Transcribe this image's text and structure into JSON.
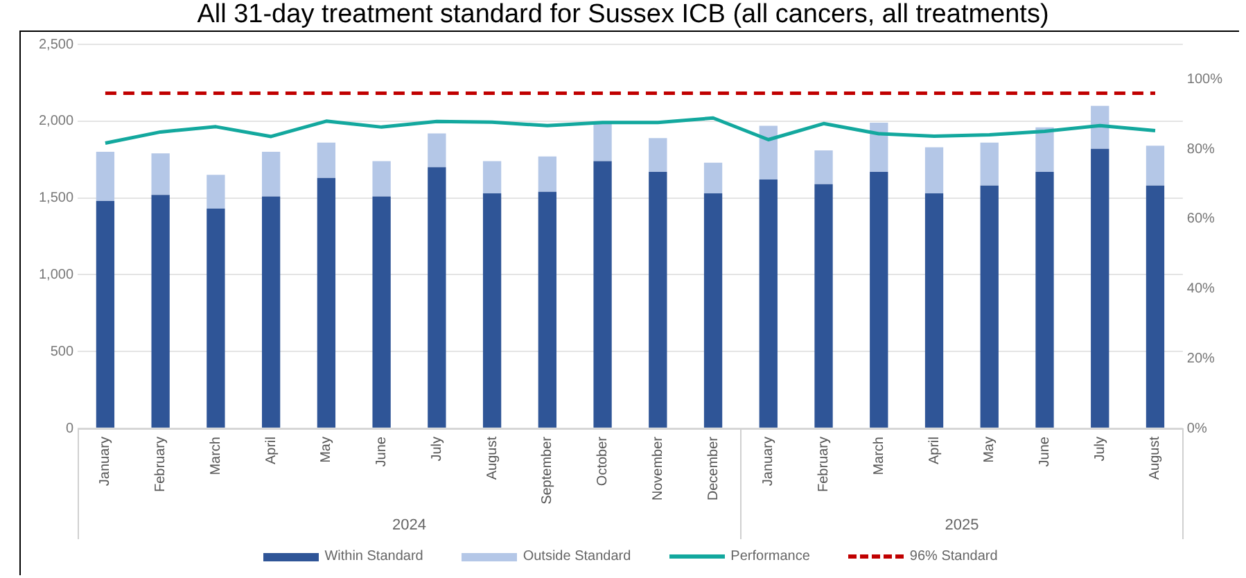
{
  "chart_data": {
    "type": "bar",
    "title": "All 31-day treatment standard for Sussex ICB (all cancers, all treatments)",
    "categories": [
      "January",
      "February",
      "March",
      "April",
      "May",
      "June",
      "July",
      "August",
      "September",
      "October",
      "November",
      "December",
      "January",
      "February",
      "March",
      "April",
      "May",
      "June",
      "July",
      "August"
    ],
    "stacked": true,
    "series": [
      {
        "name": "Within Standard",
        "color": "#2f5597",
        "values": [
          1480,
          1520,
          1430,
          1510,
          1630,
          1510,
          1700,
          1530,
          1540,
          1740,
          1670,
          1530,
          1620,
          1590,
          1670,
          1530,
          1580,
          1670,
          1820,
          1580
        ]
      },
      {
        "name": "Outside Standard",
        "color": "#b4c7e7",
        "values": [
          320,
          270,
          220,
          290,
          230,
          230,
          220,
          210,
          230,
          250,
          220,
          200,
          350,
          220,
          320,
          300,
          280,
          290,
          280,
          260
        ]
      },
      {
        "name": "Performance",
        "type": "line",
        "axis": "y2",
        "color": "#13a89e",
        "marker": "none",
        "values": [
          81.7,
          84.9,
          86.4,
          83.6,
          88,
          86.3,
          87.9,
          87.7,
          86.7,
          87.6,
          87.6,
          88.9,
          82.7,
          87.3,
          84.4,
          83.7,
          84.1,
          85.1,
          86.7,
          85.3
        ]
      }
    ],
    "ref_lines": [
      {
        "axis": "y2",
        "value": 96,
        "label": "96% Standard",
        "color": "#c00000",
        "line_style": "dashed"
      }
    ],
    "annotations": [
      "2024",
      "2025"
    ],
    "ylim": [
      0,
      2500
    ],
    "yticks": [
      {
        "value": 0,
        "label": "0"
      },
      {
        "value": 500,
        "label": "500"
      },
      {
        "value": 1000,
        "label": "1,000"
      },
      {
        "value": 1500,
        "label": "1,500"
      },
      {
        "value": 2000,
        "label": "2,000"
      },
      {
        "value": 2500,
        "label": "2,500"
      }
    ],
    "y2lim": [
      0,
      110
    ],
    "y2ticks": [
      {
        "value": 0,
        "label": "0%"
      },
      {
        "value": 20,
        "label": "20%"
      },
      {
        "value": 40,
        "label": "40%"
      },
      {
        "value": 60,
        "label": "60%"
      },
      {
        "value": 80,
        "label": "80%"
      },
      {
        "value": 100,
        "label": "100%"
      }
    ],
    "grid": "y",
    "legend": "bottom"
  }
}
